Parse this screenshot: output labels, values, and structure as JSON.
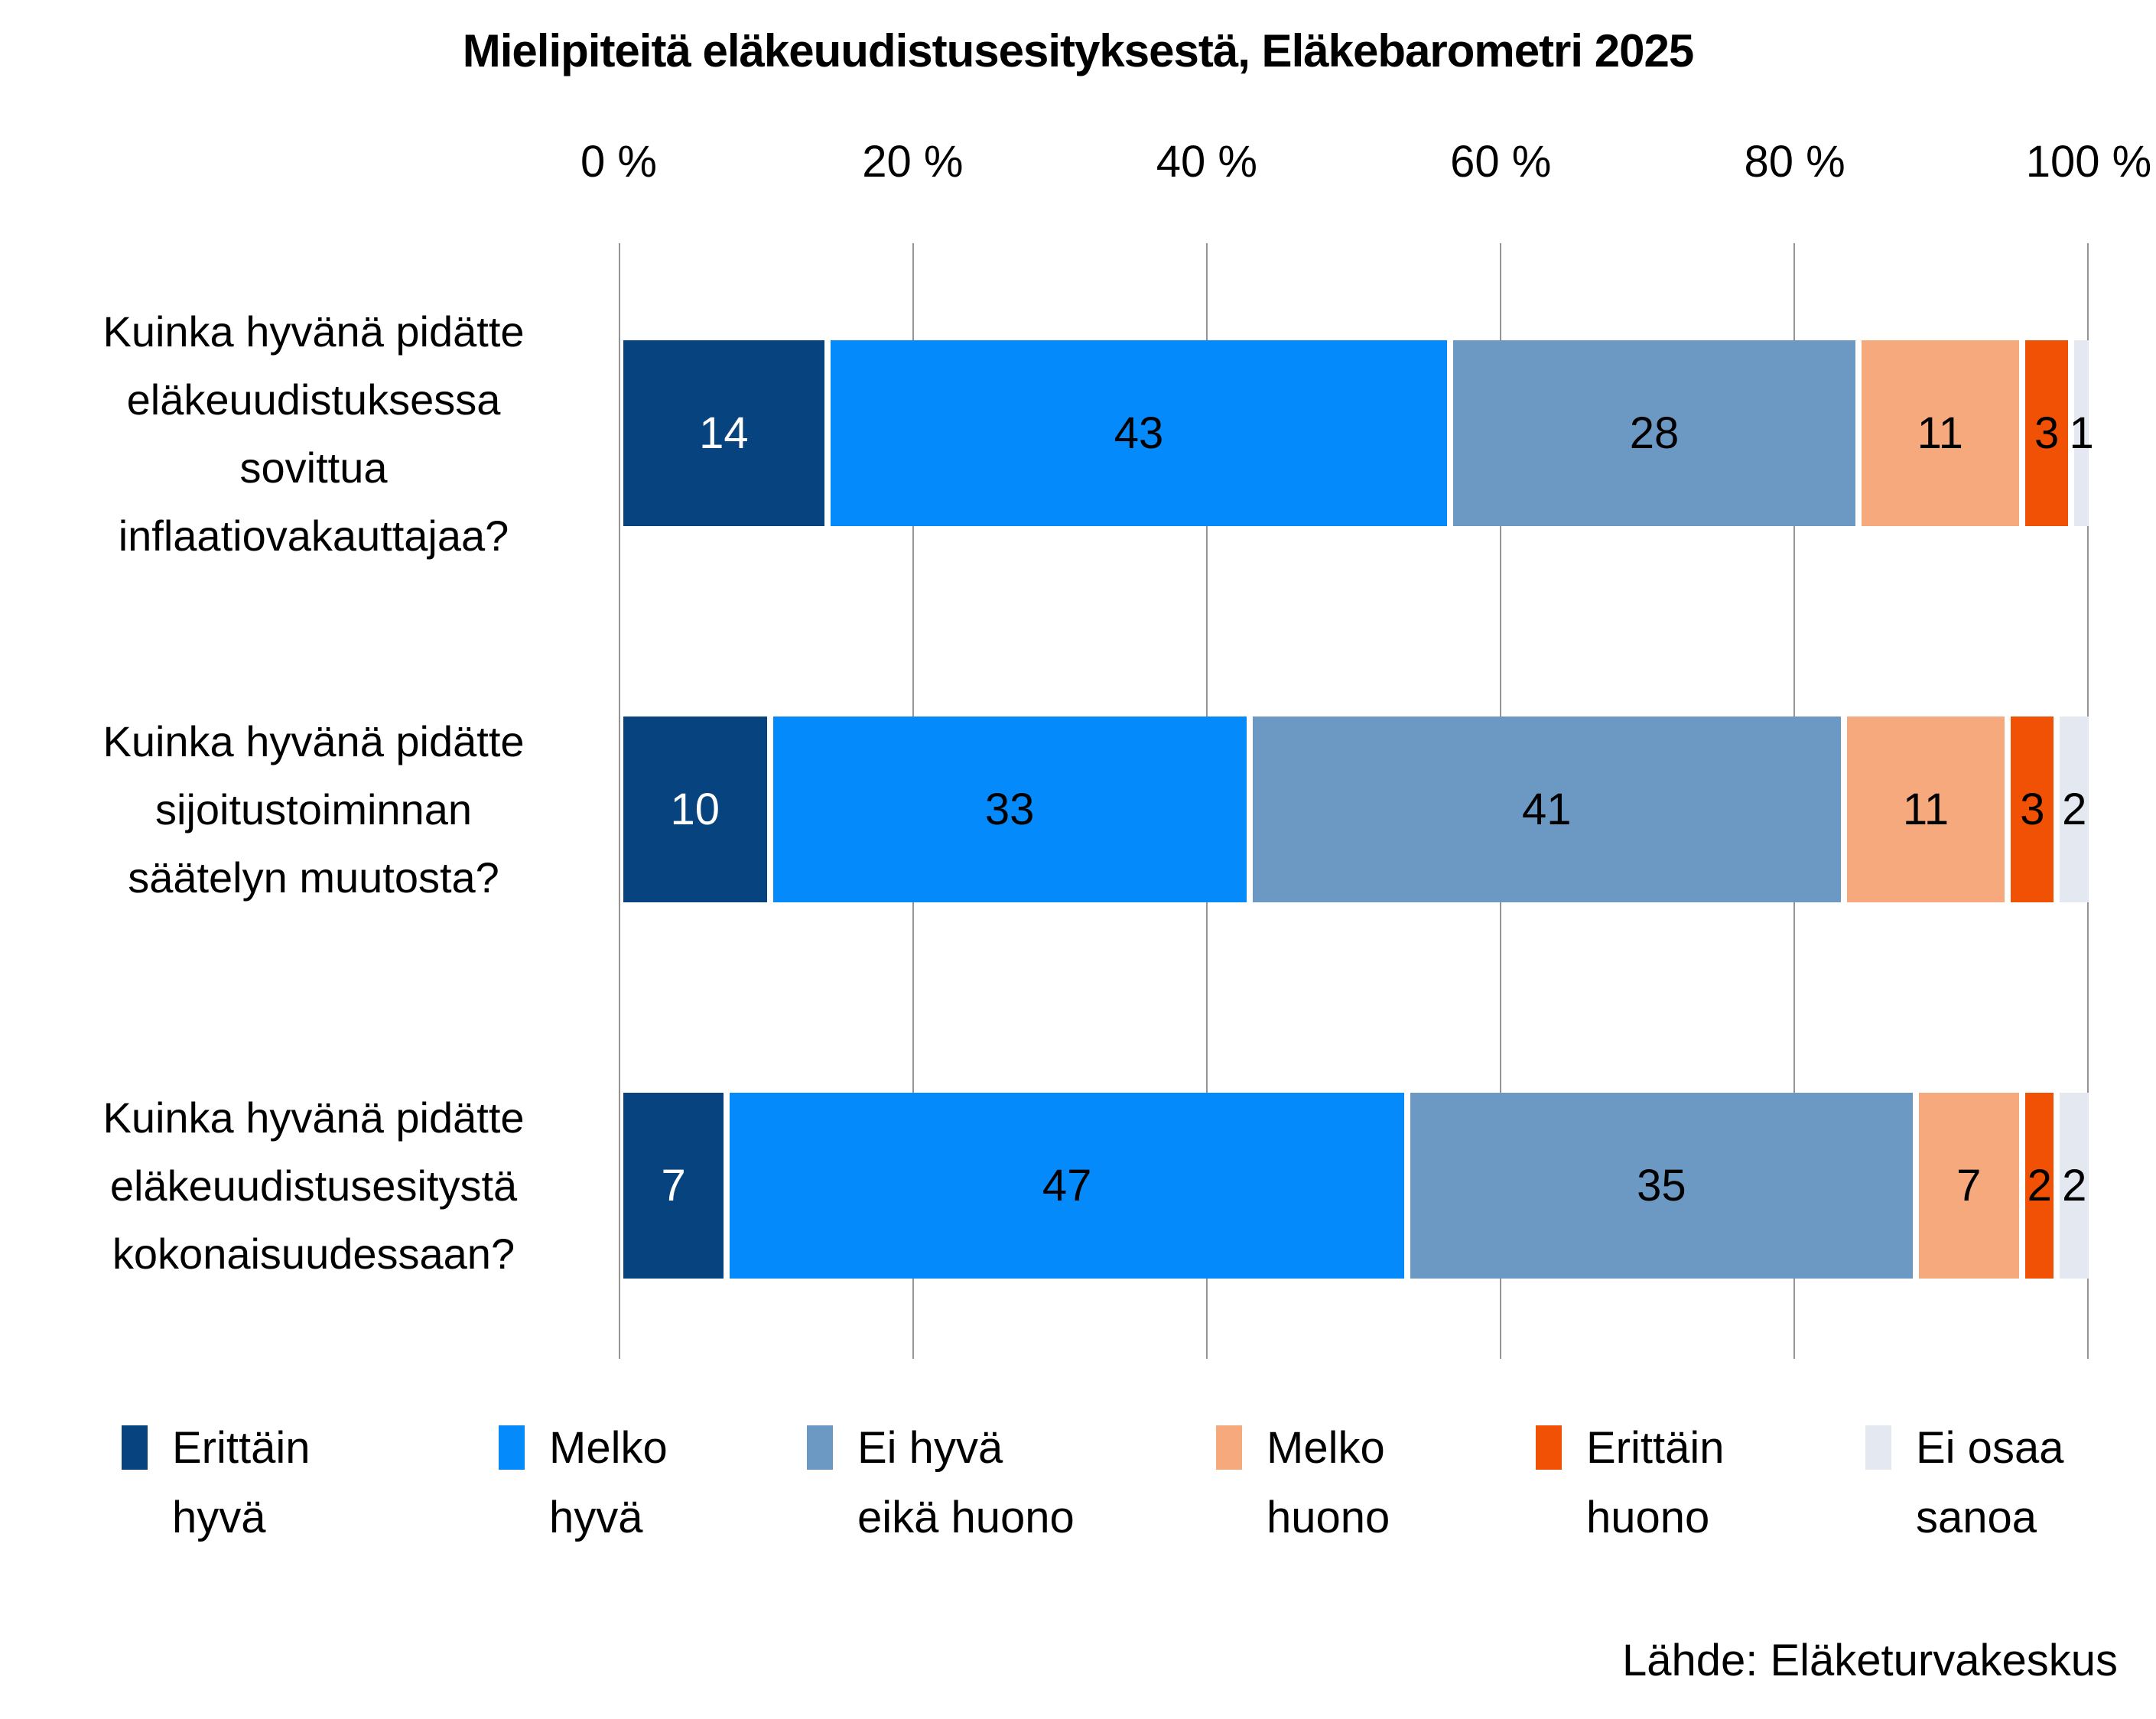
{
  "title": "Mielipiteitä eläkeuudistusesityksestä, Eläkebarometri 2025",
  "source_note": "Lähde: Eläketurvakeskus",
  "colors": {
    "background": "#ffffff",
    "gridline": "#949494",
    "text": "#000000"
  },
  "chart_data": {
    "type": "bar",
    "subtype": "horizontal-stacked-100",
    "title": "Mielipiteitä eläkeuudistusesityksestä, Eläkebarometri 2025",
    "xlabel": "",
    "ylabel": "",
    "xlim": [
      0,
      100
    ],
    "x_ticks": [
      "0 %",
      "20 %",
      "40 %",
      "60 %",
      "80 %",
      "100 %"
    ],
    "grid": true,
    "legend_position": "bottom",
    "categories": [
      "Kuinka hyvänä pidätte eläkeuudistuksessa sovittua inflaatiovakauttajaa?",
      "Kuinka hyvänä pidätte sijoitustoiminnan säätelyn muutosta?",
      "Kuinka hyvänä pidätte eläkeuudistusesitystä kokonaisuudessaan?"
    ],
    "category_label_lines": [
      [
        "Kuinka hyvänä pidätte",
        "eläkeuudistuksessa",
        "sovittua",
        "inflaatiovakauttajaa?"
      ],
      [
        "Kuinka hyvänä pidätte",
        "sijoitustoiminnan",
        "säätelyn muutosta?"
      ],
      [
        "Kuinka hyvänä pidätte",
        "eläkeuudistusesitystä",
        "kokonaisuudessaan?"
      ]
    ],
    "series": [
      {
        "name": "Erittäin hyvä",
        "legend_lines": [
          "Erittäin",
          "hyvä"
        ],
        "color": "#07437f",
        "label_color": "#ffffff",
        "values": [
          14,
          10,
          7
        ]
      },
      {
        "name": "Melko hyvä",
        "legend_lines": [
          "Melko",
          "hyvä"
        ],
        "color": "#058afb",
        "label_color": "#000000",
        "values": [
          43,
          33,
          47
        ]
      },
      {
        "name": "Ei hyvä eikä huono",
        "legend_lines": [
          "Ei hyvä",
          "eikä huono"
        ],
        "color": "#6b99c4",
        "label_color": "#000000",
        "values": [
          28,
          41,
          35
        ]
      },
      {
        "name": "Melko huono",
        "legend_lines": [
          "Melko",
          "huono"
        ],
        "color": "#f5a97d",
        "label_color": "#000000",
        "values": [
          11,
          11,
          7
        ]
      },
      {
        "name": "Erittäin huono",
        "legend_lines": [
          "Erittäin",
          "huono"
        ],
        "color": "#f15104",
        "label_color": "#000000",
        "values": [
          3,
          3,
          2
        ]
      },
      {
        "name": "Ei osaa sanoa",
        "legend_lines": [
          "Ei osaa",
          "sanoa"
        ],
        "color": "#e4e9f1",
        "label_color": "#000000",
        "values": [
          1,
          2,
          2
        ]
      }
    ]
  }
}
